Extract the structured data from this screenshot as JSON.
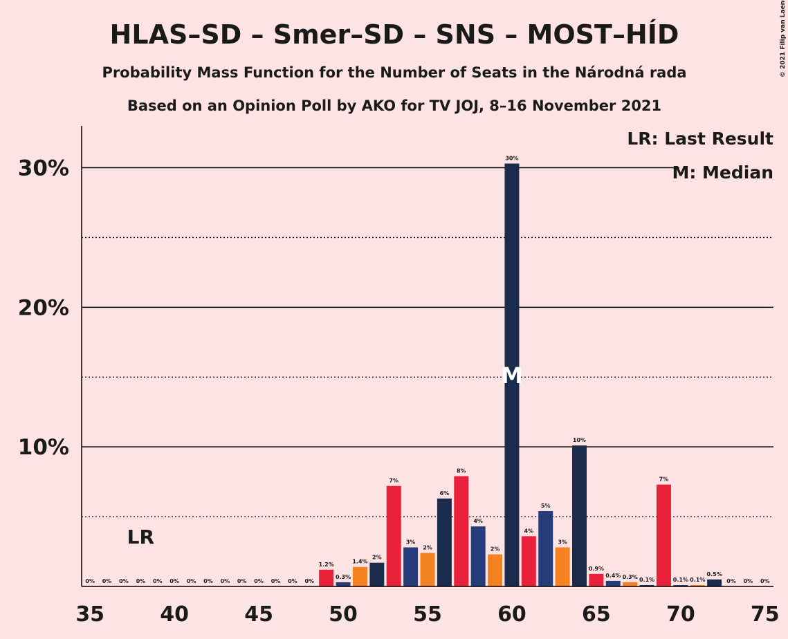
{
  "chart_data": {
    "type": "bar",
    "title": "HLAS–SD – Smer–SD – SNS – MOST–HÍD",
    "subtitle": "Probability Mass Function for the Number of Seats in the Národná rada",
    "subtitle2": "Based on an Opinion Poll by AKO for TV JOJ, 8–16 November 2021",
    "copyright": "© 2021 Filip van Laenen",
    "x": [
      35,
      36,
      37,
      38,
      39,
      40,
      41,
      42,
      43,
      44,
      45,
      46,
      47,
      48,
      49,
      50,
      51,
      52,
      53,
      54,
      55,
      56,
      57,
      58,
      59,
      60,
      61,
      62,
      63,
      64,
      65,
      66,
      67,
      68,
      69,
      70,
      71,
      72,
      73,
      74,
      75
    ],
    "values": [
      0,
      0,
      0,
      0,
      0,
      0,
      0,
      0,
      0,
      0,
      0,
      0,
      0,
      0,
      1.2,
      0.3,
      1.4,
      1.7,
      7.2,
      2.8,
      2.4,
      6.3,
      7.9,
      4.3,
      2.3,
      30.3,
      3.6,
      5.4,
      2.8,
      10.1,
      0.9,
      0.4,
      0.3,
      0.1,
      7.3,
      0.1,
      0.1,
      0.5,
      0,
      0,
      0
    ],
    "value_labels": [
      "0%",
      "0%",
      "0%",
      "0%",
      "0%",
      "0%",
      "0%",
      "0%",
      "0%",
      "0%",
      "0%",
      "0%",
      "0%",
      "0%",
      "1.2%",
      "0.3%",
      "1.4%",
      "2%",
      "7%",
      "3%",
      "2%",
      "6%",
      "8%",
      "4%",
      "2%",
      "30%",
      "4%",
      "5%",
      "3%",
      "10%",
      "0.9%",
      "0.4%",
      "0.3%",
      "0.1%",
      "7%",
      "0.1%",
      "0.1%",
      "0.5%",
      "0%",
      "0%",
      "0%"
    ],
    "colors": [
      "#f58220",
      "#1b2b4b",
      "#e8203a",
      "#263c7a",
      "#f58220",
      "#1b2b4b",
      "#e8203a",
      "#263c7a",
      "#f58220",
      "#1b2b4b",
      "#e8203a",
      "#263c7a",
      "#f58220",
      "#1b2b4b",
      "#e8203a",
      "#263c7a",
      "#f58220",
      "#1b2b4b",
      "#e8203a",
      "#263c7a",
      "#f58220",
      "#1b2b4b",
      "#e8203a",
      "#263c7a",
      "#f58220",
      "#1b2b4b",
      "#e8203a",
      "#263c7a",
      "#f58220",
      "#1b2b4b",
      "#e8203a",
      "#263c7a",
      "#f58220",
      "#1b2b4b",
      "#e8203a",
      "#263c7a",
      "#f58220",
      "#1b2b4b",
      "#e8203a",
      "#263c7a",
      "#f58220"
    ],
    "xlim": [
      34.5,
      75.5
    ],
    "xticks": [
      35,
      40,
      45,
      50,
      55,
      60,
      65,
      70,
      75
    ],
    "ylim": [
      0,
      33
    ],
    "yticks": [
      {
        "value": 10,
        "label": "10%"
      },
      {
        "value": 20,
        "label": "20%"
      },
      {
        "value": 30,
        "label": "30%"
      }
    ],
    "minor_yticks": [
      5,
      15,
      25
    ],
    "last_result": {
      "label": "LR",
      "x": 38
    },
    "median": {
      "label": "M",
      "x": 60
    },
    "legend": [
      "LR: Last Result",
      "M: Median"
    ]
  }
}
